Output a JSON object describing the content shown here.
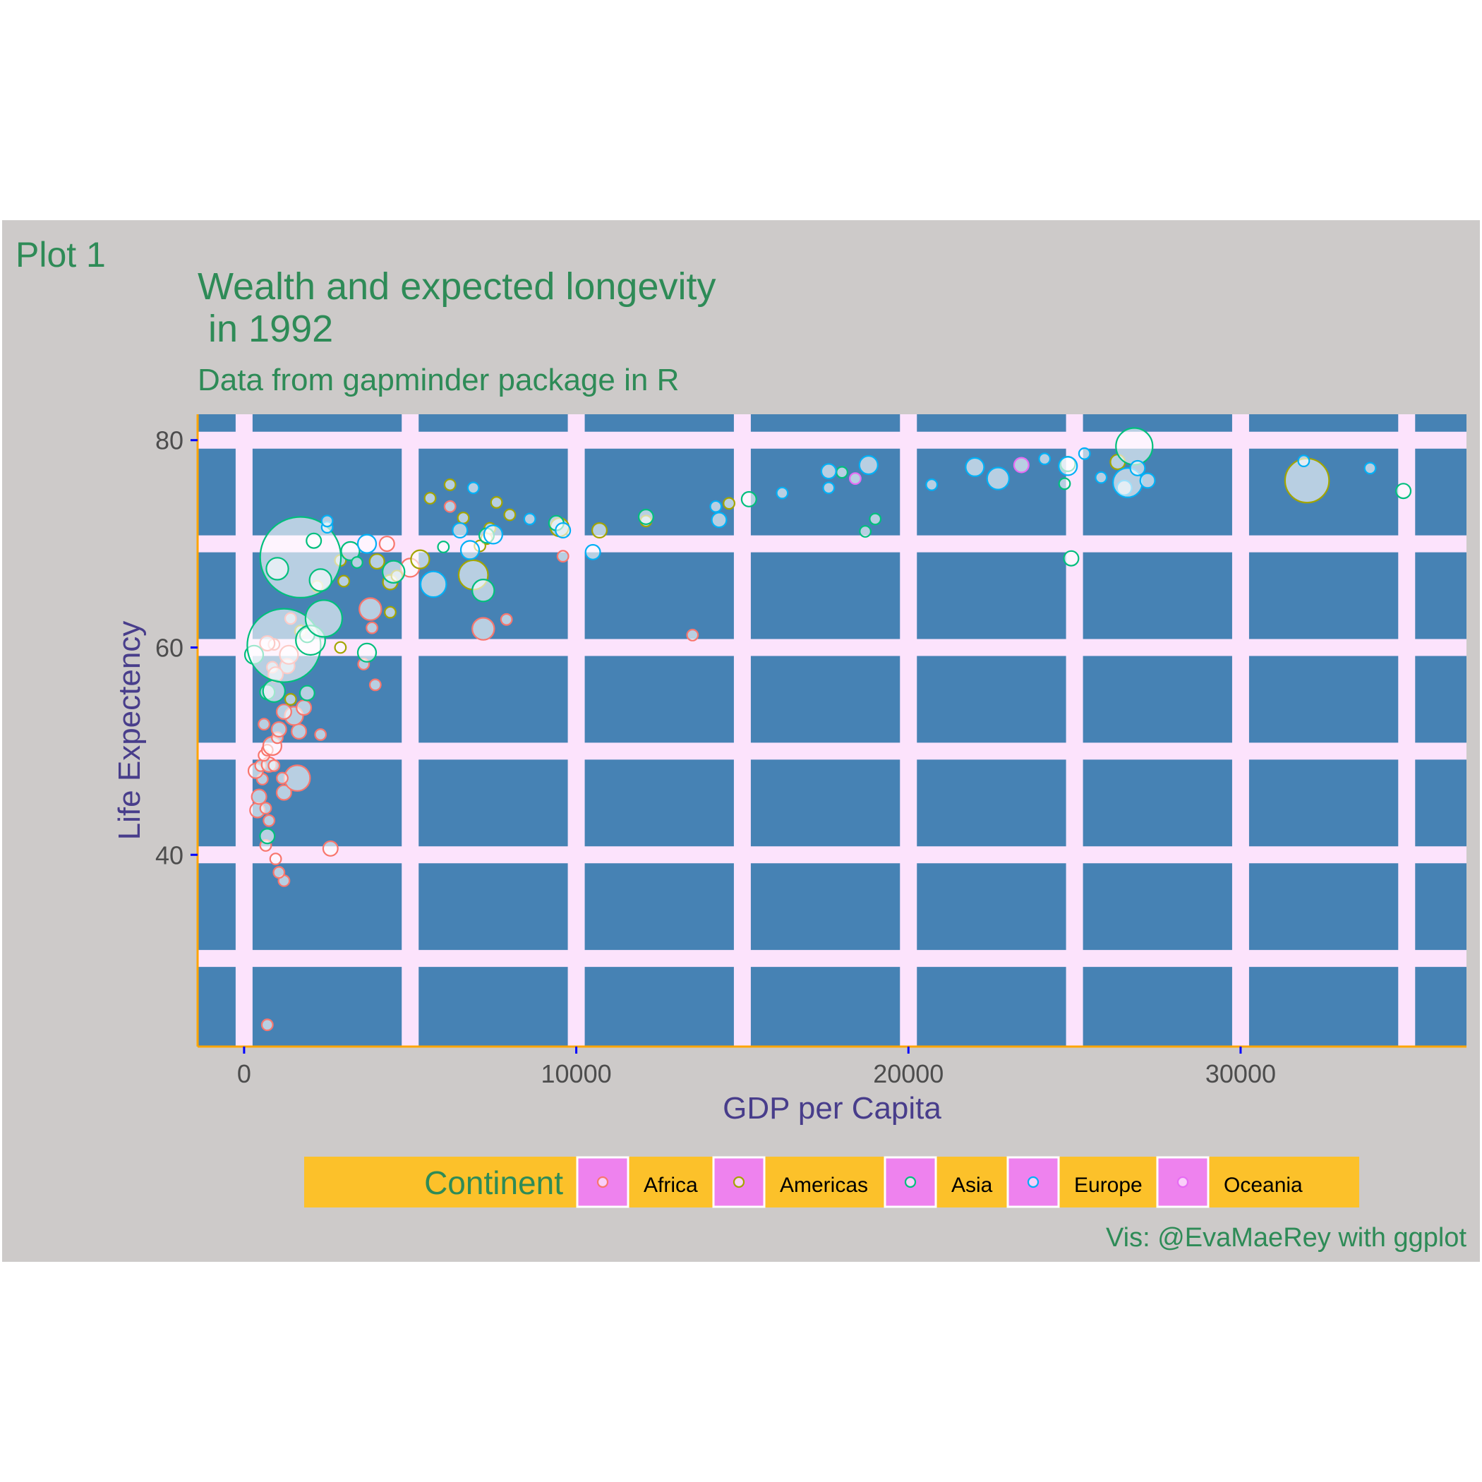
{
  "colors": {
    "page_bg": "#ffffff",
    "plot_outer_bg": "#cdcac9",
    "panel_bg": "#4682b4",
    "grid_major": "#fce3fc",
    "axis_line": "#ffa500",
    "tick_color": "#0000ff",
    "title_color": "#2e8b57",
    "axis_title_color": "#483d8b",
    "tick_label_color": "#4d4d4d",
    "legend_bg": "#fcc12a",
    "legend_key_bg": "#ee82ee",
    "continents": {
      "Africa": "#f8766d",
      "Americas": "#a3a500",
      "Asia": "#00bf7d",
      "Europe": "#00b0f6",
      "Oceania": "#e76bf3"
    }
  },
  "tag": "Plot 1",
  "chart_data": {
    "type": "scatter",
    "title": "Wealth and expected longevity\n in 1992",
    "title_lines": [
      "Wealth and expected longevity",
      " in 1992"
    ],
    "subtitle": "Data from gapminder package in R",
    "caption": "Vis: @EvaMaeRey with ggplot",
    "xlabel": "GDP per Capita",
    "ylabel": "Life Expectency",
    "xlim": [
      -1400,
      36800
    ],
    "ylim": [
      21.5,
      82.5
    ],
    "x_ticks": [
      0,
      10000,
      20000,
      30000
    ],
    "x_tick_labels": [
      "0",
      "10000",
      "20000",
      "30000"
    ],
    "y_ticks": [
      40,
      60,
      80
    ],
    "y_tick_labels": [
      "40",
      "60",
      "80"
    ],
    "x_grid": [
      0,
      5000,
      10000,
      15000,
      20000,
      25000,
      30000,
      35000
    ],
    "y_grid": [
      30,
      40,
      50,
      60,
      70,
      80
    ],
    "legend": {
      "title": "Continent",
      "position": "bottom",
      "entries": [
        "Africa",
        "Americas",
        "Asia",
        "Europe",
        "Oceania"
      ]
    },
    "series": [
      {
        "name": "Africa",
        "points": [
          [
            700,
            23.6,
            1.5
          ],
          [
            1200,
            37.5,
            1.5
          ],
          [
            1050,
            38.3,
            1.5
          ],
          [
            950,
            39.6,
            1.5
          ],
          [
            650,
            40.9,
            1.5
          ],
          [
            2600,
            40.6,
            2
          ],
          [
            400,
            44.3,
            2
          ],
          [
            750,
            43.3,
            1.5
          ],
          [
            450,
            45.6,
            2
          ],
          [
            650,
            44.5,
            1.5
          ],
          [
            1200,
            46.0,
            2
          ],
          [
            1600,
            47.4,
            3.5
          ],
          [
            1150,
            47.4,
            1.5
          ],
          [
            550,
            47.3,
            1.5
          ],
          [
            350,
            48.1,
            2
          ],
          [
            500,
            48.6,
            1.5
          ],
          [
            750,
            48.7,
            2
          ],
          [
            900,
            48.6,
            1.5
          ],
          [
            600,
            49.6,
            1.5
          ],
          [
            700,
            50.1,
            1.5
          ],
          [
            850,
            50.5,
            2.5
          ],
          [
            1000,
            51.3,
            1.5
          ],
          [
            1050,
            52.1,
            2
          ],
          [
            1650,
            51.9,
            2
          ],
          [
            600,
            52.6,
            1.5
          ],
          [
            2300,
            51.6,
            1.5
          ],
          [
            1500,
            53.4,
            2.5
          ],
          [
            1200,
            53.8,
            2
          ],
          [
            1800,
            54.2,
            2
          ],
          [
            3600,
            58.4,
            1.5
          ],
          [
            3950,
            56.4,
            1.5
          ],
          [
            1300,
            58.2,
            2
          ],
          [
            850,
            58.1,
            1.5
          ],
          [
            950,
            57.4,
            2
          ],
          [
            1350,
            59.3,
            2.5
          ],
          [
            900,
            60.3,
            1.5
          ],
          [
            700,
            60.4,
            2
          ],
          [
            1400,
            62.8,
            1.5
          ],
          [
            3850,
            61.9,
            1.5
          ],
          [
            3800,
            63.7,
            3
          ],
          [
            7200,
            61.8,
            3
          ],
          [
            7900,
            62.7,
            1.5
          ],
          [
            9600,
            68.8,
            1.5
          ],
          [
            6200,
            73.6,
            1.5
          ],
          [
            4300,
            70.0,
            2
          ],
          [
            5000,
            67.7,
            2.5
          ],
          [
            13500,
            61.2,
            1.5
          ]
        ]
      },
      {
        "name": "Americas",
        "points": [
          [
            1700,
            61.6,
            1.5
          ],
          [
            2900,
            60.0,
            1.5
          ],
          [
            1400,
            55.0,
            1.5
          ],
          [
            2200,
            65.9,
            1.5
          ],
          [
            3000,
            66.4,
            1.5
          ],
          [
            2900,
            68.4,
            1.5
          ],
          [
            4000,
            68.3,
            2
          ],
          [
            4400,
            66.3,
            2
          ],
          [
            4600,
            66.9,
            1.5
          ],
          [
            4400,
            63.4,
            1.5
          ],
          [
            5300,
            68.5,
            2.5
          ],
          [
            5600,
            74.4,
            1.5
          ],
          [
            6200,
            75.7,
            1.5
          ],
          [
            6600,
            72.5,
            1.5
          ],
          [
            7300,
            70.5,
            1.5
          ],
          [
            7400,
            71.5,
            1.5
          ],
          [
            7600,
            74.0,
            1.5
          ],
          [
            7100,
            69.8,
            1.5
          ],
          [
            6900,
            67.0,
            4
          ],
          [
            8000,
            72.8,
            1.5
          ],
          [
            9500,
            71.6,
            2.5
          ],
          [
            10700,
            71.3,
            2
          ],
          [
            12100,
            72.2,
            1.5
          ],
          [
            14600,
            73.9,
            1.5
          ],
          [
            26300,
            77.9,
            2
          ],
          [
            32000,
            76.1,
            6
          ]
        ]
      },
      {
        "name": "Asia",
        "points": [
          [
            300,
            59.3,
            2.5
          ],
          [
            700,
            55.7,
            2
          ],
          [
            900,
            55.8,
            3
          ],
          [
            1200,
            60.2,
            10
          ],
          [
            1700,
            68.7,
            11
          ],
          [
            1000,
            67.6,
            3
          ],
          [
            1900,
            61.2,
            2
          ],
          [
            2000,
            60.7,
            4
          ],
          [
            2400,
            62.8,
            5
          ],
          [
            2300,
            66.5,
            3
          ],
          [
            1900,
            55.6,
            2
          ],
          [
            700,
            41.8,
            2
          ],
          [
            3200,
            69.3,
            2.5
          ],
          [
            3400,
            68.2,
            1.5
          ],
          [
            3700,
            59.5,
            2.5
          ],
          [
            4500,
            67.3,
            3
          ],
          [
            7200,
            65.5,
            3
          ],
          [
            6000,
            69.7,
            1.5
          ],
          [
            9400,
            72.0,
            2
          ],
          [
            12100,
            72.6,
            2
          ],
          [
            15200,
            74.3,
            2
          ],
          [
            18000,
            76.9,
            1.5
          ],
          [
            18700,
            71.2,
            1.5
          ],
          [
            19000,
            72.4,
            1.5
          ],
          [
            24900,
            68.6,
            2
          ],
          [
            24700,
            75.8,
            1.5
          ],
          [
            24800,
            77.7,
            2
          ],
          [
            26800,
            79.4,
            5
          ],
          [
            34900,
            75.1,
            2
          ],
          [
            7300,
            70.8,
            2
          ],
          [
            2100,
            70.3,
            2
          ]
        ]
      },
      {
        "name": "Europe",
        "points": [
          [
            2500,
            71.6,
            1.5
          ],
          [
            2500,
            72.2,
            1.5
          ],
          [
            3700,
            70.0,
            2.5
          ],
          [
            5700,
            66.1,
            3.5
          ],
          [
            6500,
            71.3,
            2
          ],
          [
            6800,
            69.4,
            2.5
          ],
          [
            6900,
            75.4,
            1.5
          ],
          [
            7500,
            70.9,
            2.5
          ],
          [
            8600,
            72.4,
            1.5
          ],
          [
            9600,
            71.3,
            2
          ],
          [
            10500,
            69.2,
            2
          ],
          [
            14200,
            73.6,
            1.5
          ],
          [
            14300,
            72.3,
            2
          ],
          [
            16200,
            74.9,
            1.5
          ],
          [
            17600,
            77.0,
            2
          ],
          [
            17600,
            75.4,
            1.5
          ],
          [
            18800,
            77.6,
            2.5
          ],
          [
            20700,
            75.7,
            1.5
          ],
          [
            22000,
            77.4,
            2.5
          ],
          [
            22700,
            76.3,
            3
          ],
          [
            24100,
            78.2,
            1.5
          ],
          [
            24800,
            77.5,
            2.5
          ],
          [
            25300,
            78.7,
            1.5
          ],
          [
            25800,
            76.4,
            1.5
          ],
          [
            26500,
            75.4,
            2
          ],
          [
            26600,
            75.9,
            4
          ],
          [
            26900,
            77.3,
            2
          ],
          [
            27200,
            76.1,
            2
          ],
          [
            31900,
            78.0,
            1.5
          ],
          [
            33900,
            77.3,
            1.5
          ]
        ]
      },
      {
        "name": "Oceania",
        "points": [
          [
            23400,
            77.6,
            2
          ],
          [
            18400,
            76.3,
            1.5
          ]
        ]
      }
    ]
  }
}
